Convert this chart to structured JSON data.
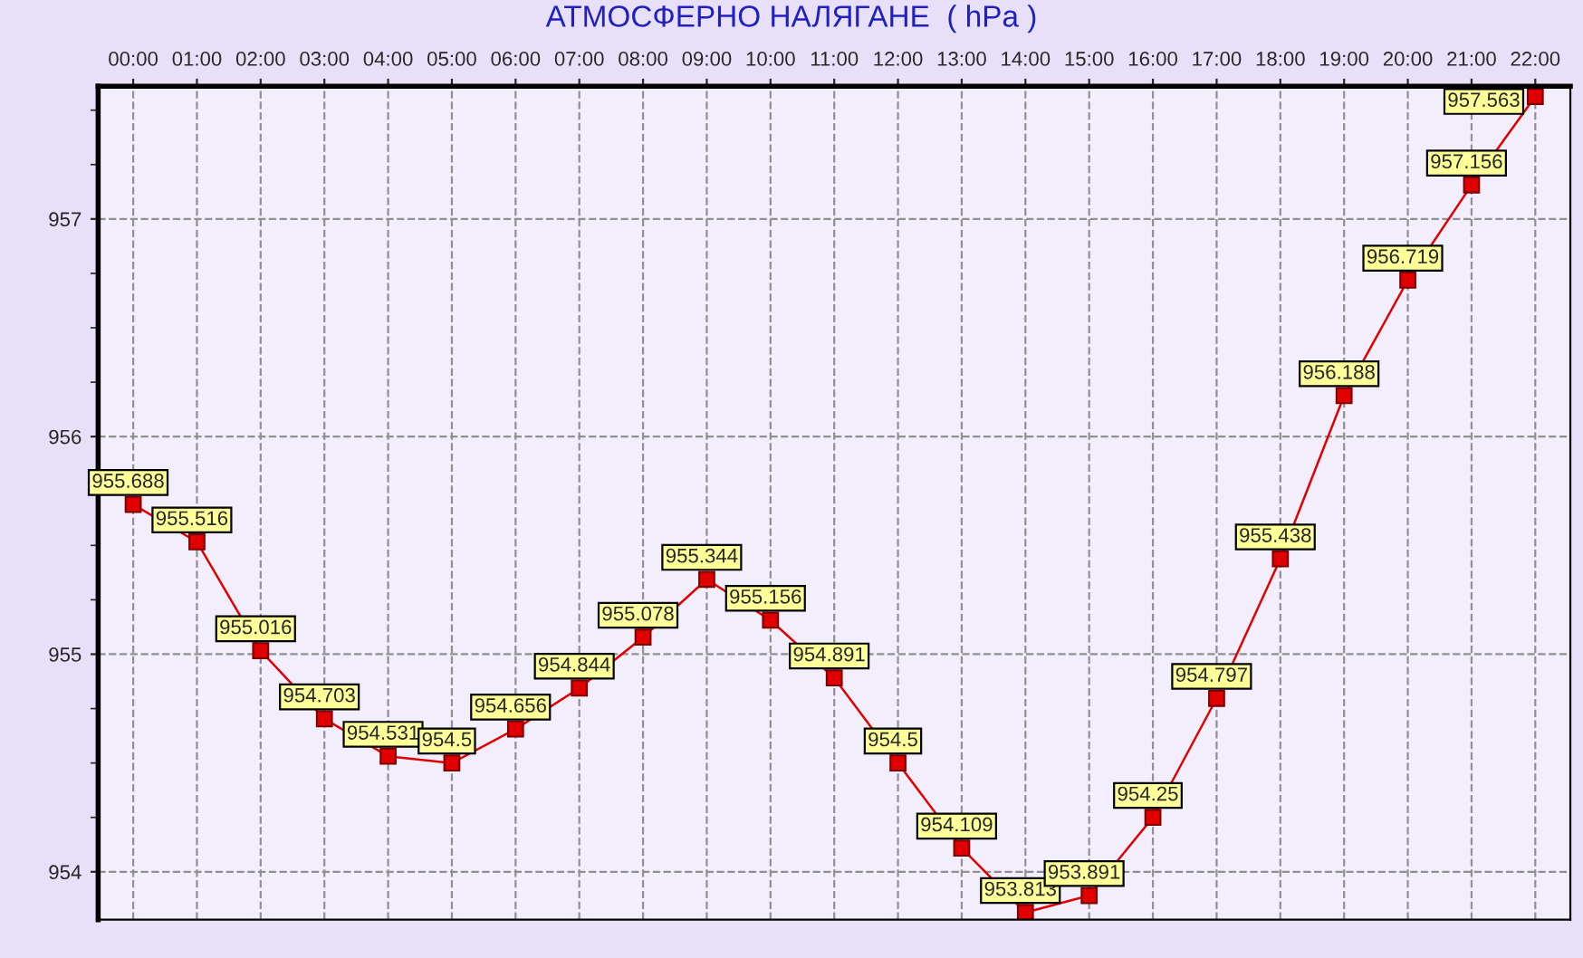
{
  "chart_data": {
    "type": "line",
    "title": "АТМОСФЕРНО НАЛЯГАНЕ  ( hPa )",
    "categories": [
      "00:00",
      "01:00",
      "02:00",
      "03:00",
      "04:00",
      "05:00",
      "06:00",
      "07:00",
      "08:00",
      "09:00",
      "10:00",
      "11:00",
      "12:00",
      "13:00",
      "14:00",
      "15:00",
      "16:00",
      "17:00",
      "18:00",
      "19:00",
      "20:00",
      "21:00",
      "22:00"
    ],
    "series": [
      {
        "color": "#e00000",
        "values": [
          955.688,
          955.516,
          955.016,
          954.703,
          954.531,
          954.5,
          954.656,
          954.844,
          955.078,
          955.344,
          955.156,
          954.891,
          954.5,
          954.109,
          953.813,
          953.891,
          954.25,
          954.797,
          955.438,
          956.188,
          956.719,
          957.156,
          957.563
        ]
      }
    ],
    "ylim": [
      953.78,
      957.61
    ],
    "yticks": [
      954,
      955,
      956,
      957
    ],
    "grid": true,
    "marker": "square",
    "line_style": "solid",
    "data_labels": true,
    "legend": false
  }
}
